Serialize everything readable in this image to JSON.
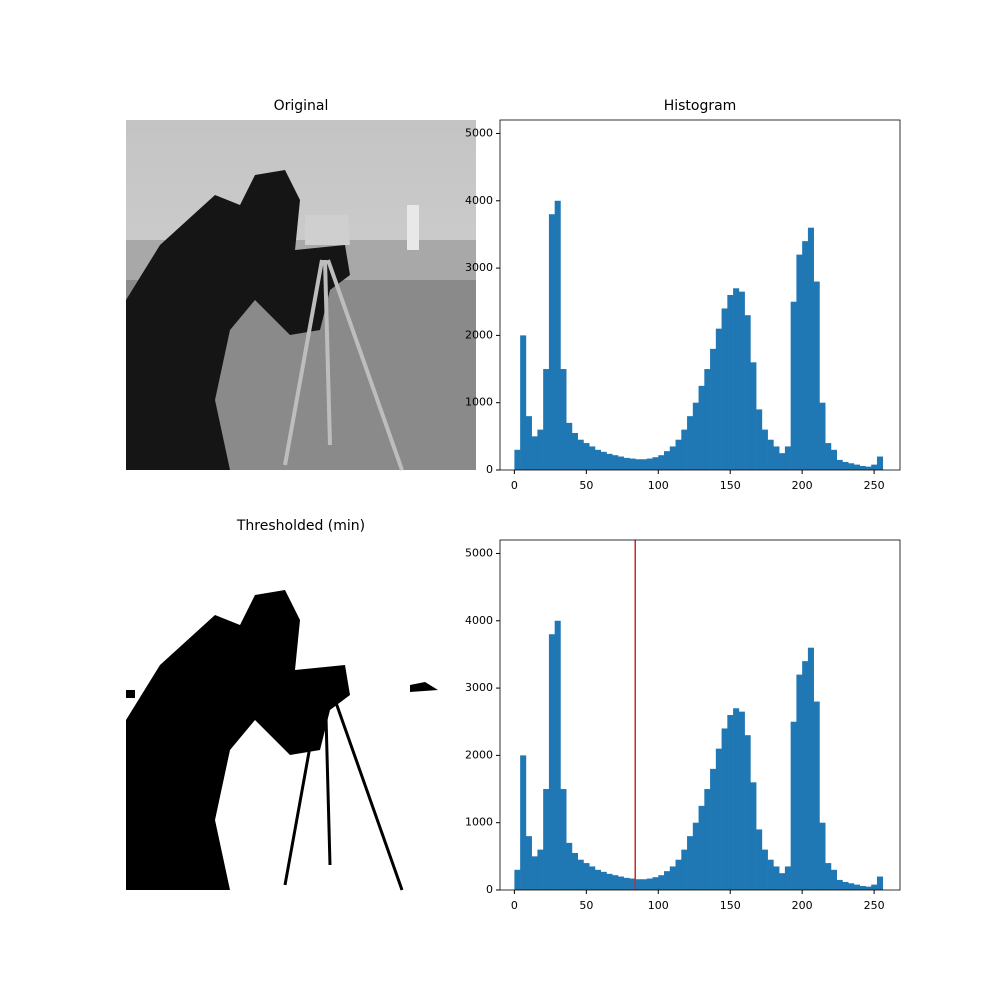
{
  "chart_data": [
    {
      "type": "image",
      "title": "Original"
    },
    {
      "type": "histogram",
      "title": "Histogram",
      "color": "#1f77b4",
      "bins": [
        0,
        4,
        8,
        12,
        16,
        20,
        24,
        28,
        32,
        36,
        40,
        44,
        48,
        52,
        56,
        60,
        64,
        68,
        72,
        76,
        80,
        84,
        88,
        92,
        96,
        100,
        104,
        108,
        112,
        116,
        120,
        124,
        128,
        132,
        136,
        140,
        144,
        148,
        152,
        156,
        160,
        164,
        168,
        172,
        176,
        180,
        184,
        188,
        192,
        196,
        200,
        204,
        208,
        212,
        216,
        220,
        224,
        228,
        232,
        236,
        240,
        244,
        248,
        252,
        256
      ],
      "counts": [
        300,
        2000,
        800,
        500,
        600,
        1500,
        3800,
        4000,
        1500,
        700,
        550,
        450,
        400,
        350,
        300,
        270,
        240,
        220,
        200,
        180,
        170,
        160,
        160,
        170,
        190,
        220,
        280,
        350,
        450,
        600,
        800,
        1000,
        1250,
        1500,
        1800,
        2100,
        2400,
        2600,
        2700,
        2650,
        2300,
        1600,
        900,
        600,
        450,
        350,
        250,
        350,
        2500,
        3200,
        3400,
        3600,
        2800,
        1000,
        400,
        300,
        150,
        120,
        100,
        80,
        60,
        50,
        80,
        200
      ],
      "xlim": [
        -10,
        268
      ],
      "ylim": [
        0,
        5200
      ],
      "xticks": [
        0,
        50,
        100,
        150,
        200,
        250
      ],
      "yticks": [
        0,
        1000,
        2000,
        3000,
        4000,
        5000
      ]
    },
    {
      "type": "image",
      "title": "Thresholded (min)"
    },
    {
      "type": "histogram",
      "color": "#1f77b4",
      "threshold": 84,
      "threshold_color": "#d62728",
      "bins": [
        0,
        4,
        8,
        12,
        16,
        20,
        24,
        28,
        32,
        36,
        40,
        44,
        48,
        52,
        56,
        60,
        64,
        68,
        72,
        76,
        80,
        84,
        88,
        92,
        96,
        100,
        104,
        108,
        112,
        116,
        120,
        124,
        128,
        132,
        136,
        140,
        144,
        148,
        152,
        156,
        160,
        164,
        168,
        172,
        176,
        180,
        184,
        188,
        192,
        196,
        200,
        204,
        208,
        212,
        216,
        220,
        224,
        228,
        232,
        236,
        240,
        244,
        248,
        252,
        256
      ],
      "counts": [
        300,
        2000,
        800,
        500,
        600,
        1500,
        3800,
        4000,
        1500,
        700,
        550,
        450,
        400,
        350,
        300,
        270,
        240,
        220,
        200,
        180,
        170,
        160,
        160,
        170,
        190,
        220,
        280,
        350,
        450,
        600,
        800,
        1000,
        1250,
        1500,
        1800,
        2100,
        2400,
        2600,
        2700,
        2650,
        2300,
        1600,
        900,
        600,
        450,
        350,
        250,
        350,
        2500,
        3200,
        3400,
        3600,
        2800,
        1000,
        400,
        300,
        150,
        120,
        100,
        80,
        60,
        50,
        80,
        200
      ],
      "xlim": [
        -10,
        268
      ],
      "ylim": [
        0,
        5200
      ],
      "xticks": [
        0,
        50,
        100,
        150,
        200,
        250
      ],
      "yticks": [
        0,
        1000,
        2000,
        3000,
        4000,
        5000
      ]
    }
  ]
}
